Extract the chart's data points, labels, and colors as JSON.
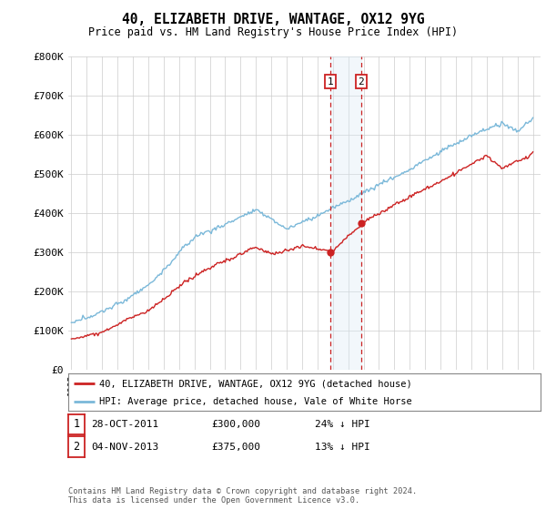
{
  "title": "40, ELIZABETH DRIVE, WANTAGE, OX12 9YG",
  "subtitle": "Price paid vs. HM Land Registry's House Price Index (HPI)",
  "ylim": [
    0,
    800000
  ],
  "yticks": [
    0,
    100000,
    200000,
    300000,
    400000,
    500000,
    600000,
    700000,
    800000
  ],
  "ytick_labels": [
    "£0",
    "£100K",
    "£200K",
    "£300K",
    "£400K",
    "£500K",
    "£600K",
    "£700K",
    "£800K"
  ],
  "hpi_color": "#7ab8d9",
  "price_color": "#cc2222",
  "marker_color": "#cc2222",
  "vline_color": "#cc2222",
  "shade_color": "#daeaf5",
  "annotation_box_color": "#cc2222",
  "sale1_year": 2011.82,
  "sale1_price": 300000,
  "sale1_label": "1",
  "sale1_date": "28-OCT-2011",
  "sale1_pct": "24% ↓ HPI",
  "sale2_year": 2013.84,
  "sale2_price": 375000,
  "sale2_label": "2",
  "sale2_date": "04-NOV-2013",
  "sale2_pct": "13% ↓ HPI",
  "legend1": "40, ELIZABETH DRIVE, WANTAGE, OX12 9YG (detached house)",
  "legend2": "HPI: Average price, detached house, Vale of White Horse",
  "footer": "Contains HM Land Registry data © Crown copyright and database right 2024.\nThis data is licensed under the Open Government Licence v3.0.",
  "background_color": "#ffffff",
  "grid_color": "#cccccc"
}
